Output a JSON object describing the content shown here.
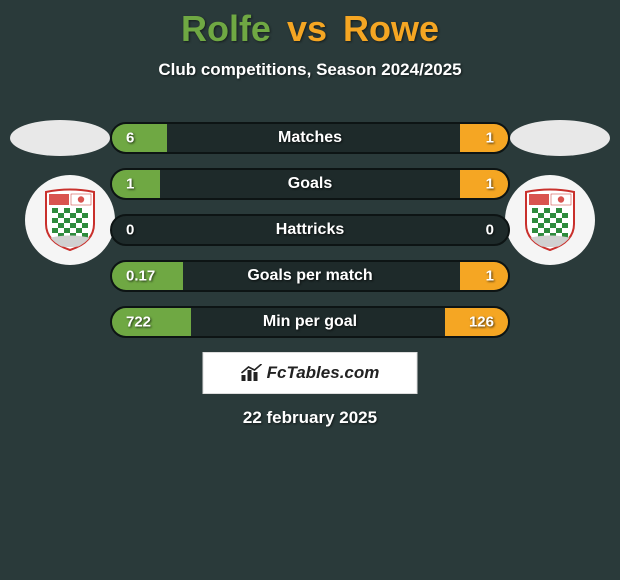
{
  "colors": {
    "background": "#2a3a3a",
    "player1_accent": "#6fa843",
    "player2_accent": "#f5a623",
    "bar_mid": "#1e2a2a",
    "bar_border": "#0d1414",
    "photo_bg": "#e8e8e8",
    "date_color": "#ffffff"
  },
  "title": {
    "player1": "Rolfe",
    "vs": "vs",
    "player2": "Rowe"
  },
  "subtitle": "Club competitions, Season 2024/2025",
  "stats": [
    {
      "label": "Matches",
      "left_val": "6",
      "right_val": "1",
      "left_pct": 14,
      "right_pct": 12
    },
    {
      "label": "Goals",
      "left_val": "1",
      "right_val": "1",
      "left_pct": 12,
      "right_pct": 12
    },
    {
      "label": "Hattricks",
      "left_val": "0",
      "right_val": "0",
      "left_pct": 0,
      "right_pct": 0
    },
    {
      "label": "Goals per match",
      "left_val": "0.17",
      "right_val": "1",
      "left_pct": 18,
      "right_pct": 12
    },
    {
      "label": "Min per goal",
      "left_val": "722",
      "right_val": "126",
      "left_pct": 20,
      "right_pct": 16
    }
  ],
  "brand": "FcTables.com",
  "date": "22 february 2025",
  "shield": {
    "border": "#c9302c",
    "top_red": "#d9534f",
    "top_white": "#ffffff",
    "check_green": "#2e8b3d",
    "check_white": "#ffffff",
    "banner": "#d0d0d0"
  }
}
